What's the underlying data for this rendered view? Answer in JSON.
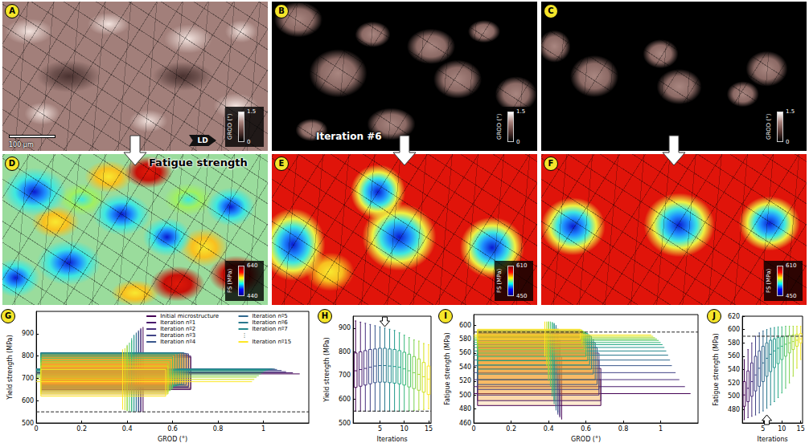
{
  "image_panels": [
    {
      "panel": "A",
      "colorbar": {
        "label": "GROD (°)",
        "range": [
          0,
          1.5
        ],
        "ticks": [
          0,
          1.5
        ],
        "colors": [
          "#000000",
          "#5a3a36",
          "#a8827c",
          "#ffffff"
        ]
      },
      "scale_bar": "100 µm",
      "direction": "LD"
    },
    {
      "panel": "B",
      "colorbar": {
        "label": "GROD (°)",
        "range": [
          0,
          1.5
        ],
        "ticks": [
          0,
          1.5
        ],
        "colors": [
          "#000000",
          "#5a3a36",
          "#a8827c",
          "#ffffff"
        ]
      },
      "caption": "Iteration #6"
    },
    {
      "panel": "C",
      "colorbar": {
        "label": "GROD (°)",
        "range": [
          0,
          1.5
        ],
        "ticks": [
          0,
          1.5
        ],
        "colors": [
          "#000000",
          "#5a3a36",
          "#a8827c",
          "#ffffff"
        ]
      }
    },
    {
      "panel": "D",
      "title": "Fatigue strength",
      "colorbar": {
        "label": "FS (MPa)",
        "range": [
          440,
          640
        ],
        "ticks": [
          440,
          640
        ],
        "colors": [
          "#00008f",
          "#0000ff",
          "#00ffff",
          "#ffff00",
          "#ff0000",
          "#800000"
        ]
      }
    },
    {
      "panel": "E",
      "colorbar": {
        "label": "FS (MPa)",
        "range": [
          450,
          610
        ],
        "ticks": [
          450,
          610
        ],
        "colors": [
          "#00008f",
          "#0000ff",
          "#00ffff",
          "#ffff00",
          "#ff0000",
          "#800000"
        ]
      }
    },
    {
      "panel": "F",
      "colorbar": {
        "label": "FS (MPa)",
        "range": [
          450,
          610
        ],
        "ticks": [
          450,
          610
        ],
        "colors": [
          "#00008f",
          "#0000ff",
          "#00ffff",
          "#ffff00",
          "#ff0000",
          "#800000"
        ]
      }
    }
  ],
  "chart_data": [
    {
      "panel": "G",
      "type": "boxplot2d",
      "x_label": "GROD (°)",
      "y_label": "Yield strength (MPa)",
      "xlim": [
        0,
        1.2
      ],
      "xticks": [
        0,
        0.2,
        0.4,
        0.6,
        0.8,
        1
      ],
      "ylim": [
        500,
        1000
      ],
      "yticks": [
        500,
        600,
        700,
        800,
        900
      ],
      "grid": false,
      "legend": "upper right",
      "reference_line": {
        "y": 550,
        "line_style": "dashed"
      },
      "annotations": [
        "⋮"
      ],
      "series": [
        {
          "name": "Initial microstructure",
          "color": "#440154",
          "grod": [
            0,
            0.02,
            0.47,
            0.68,
            1.16
          ],
          "strength": [
            550,
            650,
            720,
            795,
            930
          ]
        },
        {
          "name": "Iteration nº1",
          "color": "#481a6c",
          "grod": [
            0,
            0.02,
            0.46,
            0.68,
            1.13
          ],
          "strength": [
            550,
            655,
            725,
            800,
            925
          ]
        },
        {
          "name": "Iteration nº2",
          "color": "#472f7d",
          "grod": [
            0,
            0.02,
            0.46,
            0.67,
            1.1
          ],
          "strength": [
            550,
            660,
            730,
            805,
            920
          ]
        },
        {
          "name": "Iteration nº3",
          "color": "#414487",
          "grod": [
            0,
            0.02,
            0.45,
            0.67,
            1.08
          ],
          "strength": [
            550,
            665,
            735,
            810,
            915
          ]
        },
        {
          "name": "Iteration nº4",
          "color": "#39568c",
          "grod": [
            0,
            0.02,
            0.45,
            0.66,
            1.06
          ],
          "strength": [
            550,
            670,
            740,
            812,
            910
          ]
        },
        {
          "name": "Iteration nº5",
          "color": "#31688e",
          "grod": [
            0,
            0.02,
            0.44,
            0.65,
            1.05
          ],
          "strength": [
            550,
            672,
            742,
            815,
            905
          ]
        },
        {
          "name": "Iteration nº6",
          "color": "#2a788e",
          "grod": [
            0,
            0.02,
            0.44,
            0.64,
            1.04
          ],
          "strength": [
            550,
            672,
            742,
            815,
            900
          ]
        },
        {
          "name": "Iteration nº7",
          "color": "#23888e",
          "grod": [
            0,
            0.02,
            0.43,
            0.63,
            1.03
          ],
          "strength": [
            550,
            670,
            740,
            812,
            895
          ]
        },
        {
          "color": "#1f988b",
          "grod": [
            0,
            0.02,
            0.43,
            0.62,
            1.02
          ],
          "strength": [
            550,
            668,
            738,
            810,
            890
          ]
        },
        {
          "color": "#22a884",
          "grod": [
            0,
            0.02,
            0.42,
            0.61,
            1.01
          ],
          "strength": [
            550,
            665,
            735,
            805,
            880
          ]
        },
        {
          "color": "#35b779",
          "grod": [
            0,
            0.02,
            0.42,
            0.6,
            1.0
          ],
          "strength": [
            550,
            660,
            728,
            798,
            870
          ]
        },
        {
          "color": "#54c568",
          "grod": [
            0,
            0.02,
            0.41,
            0.6,
            0.99
          ],
          "strength": [
            552,
            652,
            720,
            790,
            860
          ]
        },
        {
          "color": "#7ad151",
          "grod": [
            0,
            0.02,
            0.4,
            0.59,
            0.98
          ],
          "strength": [
            553,
            645,
            712,
            780,
            850
          ]
        },
        {
          "color": "#a5db36",
          "grod": [
            0,
            0.02,
            0.4,
            0.58,
            0.97
          ],
          "strength": [
            555,
            638,
            705,
            770,
            845
          ]
        },
        {
          "color": "#d2e21b",
          "grod": [
            0,
            0.02,
            0.39,
            0.58,
            0.96
          ],
          "strength": [
            557,
            630,
            695,
            755,
            835
          ]
        },
        {
          "name": "Iteration nº15",
          "color": "#fde725",
          "grod": [
            0,
            0.02,
            0.38,
            0.57,
            0.95
          ],
          "strength": [
            560,
            620,
            685,
            740,
            830
          ]
        }
      ]
    },
    {
      "panel": "H",
      "type": "boxplot",
      "x_label": "Iterations",
      "y_label": "Yield strength (MPa)",
      "xlim": [
        -0.5,
        15.5
      ],
      "xticks": [
        5,
        10,
        15
      ],
      "ylim": [
        500,
        950
      ],
      "yticks": [
        500,
        600,
        700,
        800,
        900
      ],
      "grid": false,
      "reference_line": {
        "y": 550,
        "line_style": "dashed"
      },
      "arrow": {
        "x": 6,
        "direction": "down"
      },
      "x": [
        0,
        1,
        2,
        3,
        4,
        5,
        6,
        7,
        8,
        9,
        10,
        11,
        12,
        13,
        14,
        15
      ],
      "values": [
        [
          550,
          650,
          720,
          795,
          930
        ],
        [
          550,
          655,
          725,
          800,
          925
        ],
        [
          550,
          660,
          730,
          805,
          920
        ],
        [
          550,
          665,
          735,
          810,
          915
        ],
        [
          550,
          670,
          740,
          812,
          910
        ],
        [
          550,
          672,
          742,
          815,
          905
        ],
        [
          550,
          672,
          742,
          815,
          900
        ],
        [
          550,
          670,
          740,
          812,
          895
        ],
        [
          550,
          668,
          738,
          810,
          890
        ],
        [
          550,
          665,
          735,
          805,
          880
        ],
        [
          550,
          660,
          728,
          798,
          870
        ],
        [
          552,
          652,
          720,
          790,
          860
        ],
        [
          553,
          645,
          712,
          780,
          850
        ],
        [
          555,
          638,
          705,
          770,
          845
        ],
        [
          557,
          630,
          695,
          755,
          835
        ],
        [
          560,
          620,
          685,
          740,
          830
        ]
      ],
      "colors": [
        "#440154",
        "#481a6c",
        "#472f7d",
        "#414487",
        "#39568c",
        "#31688e",
        "#2a788e",
        "#23888e",
        "#1f988b",
        "#22a884",
        "#35b779",
        "#54c568",
        "#7ad151",
        "#a5db36",
        "#d2e21b",
        "#fde725"
      ]
    },
    {
      "panel": "I",
      "type": "boxplot2d",
      "x_label": "GROD (°)",
      "y_label": "Fatigue strength (MPa)",
      "xlim": [
        0,
        1.2
      ],
      "xticks": [
        0,
        0.2,
        0.4,
        0.6,
        0.8,
        1
      ],
      "ylim": [
        460,
        615
      ],
      "yticks": [
        460,
        480,
        500,
        520,
        540,
        560,
        580,
        600
      ],
      "grid": false,
      "reference_line": {
        "y": 590,
        "line_style": "dashed"
      },
      "series": [
        {
          "color": "#440154",
          "grod": [
            0,
            0.02,
            0.47,
            0.68,
            1.16
          ],
          "strength": [
            465,
            485,
            502,
            522,
            555
          ]
        },
        {
          "color": "#481a6c",
          "grod": [
            0,
            0.02,
            0.46,
            0.68,
            1.13
          ],
          "strength": [
            468,
            492,
            512,
            538,
            570
          ]
        },
        {
          "color": "#472f7d",
          "grod": [
            0,
            0.02,
            0.46,
            0.67,
            1.1
          ],
          "strength": [
            470,
            500,
            522,
            550,
            580
          ]
        },
        {
          "color": "#414487",
          "grod": [
            0,
            0.02,
            0.45,
            0.67,
            1.08
          ],
          "strength": [
            472,
            508,
            532,
            560,
            590
          ]
        },
        {
          "color": "#39568c",
          "grod": [
            0,
            0.02,
            0.45,
            0.66,
            1.06
          ],
          "strength": [
            475,
            515,
            542,
            568,
            595
          ]
        },
        {
          "color": "#31688e",
          "grod": [
            0,
            0.02,
            0.44,
            0.65,
            1.05
          ],
          "strength": [
            478,
            522,
            550,
            575,
            598
          ]
        },
        {
          "color": "#2a788e",
          "grod": [
            0,
            0.02,
            0.44,
            0.64,
            1.04
          ],
          "strength": [
            482,
            530,
            557,
            580,
            600
          ]
        },
        {
          "color": "#23888e",
          "grod": [
            0,
            0.02,
            0.43,
            0.63,
            1.03
          ],
          "strength": [
            487,
            537,
            563,
            584,
            602
          ]
        },
        {
          "color": "#1f988b",
          "grod": [
            0,
            0.02,
            0.43,
            0.62,
            1.02
          ],
          "strength": [
            492,
            543,
            568,
            586,
            603
          ]
        },
        {
          "color": "#22a884",
          "grod": [
            0,
            0.02,
            0.42,
            0.61,
            1.01
          ],
          "strength": [
            498,
            549,
            572,
            588,
            604
          ]
        },
        {
          "color": "#35b779",
          "grod": [
            0,
            0.02,
            0.42,
            0.6,
            1.0
          ],
          "strength": [
            505,
            555,
            575,
            589,
            604
          ]
        },
        {
          "color": "#54c568",
          "grod": [
            0,
            0.02,
            0.41,
            0.6,
            0.99
          ],
          "strength": [
            512,
            560,
            578,
            590,
            605
          ]
        },
        {
          "color": "#7ad151",
          "grod": [
            0,
            0.02,
            0.4,
            0.59,
            0.98
          ],
          "strength": [
            520,
            565,
            580,
            591,
            605
          ]
        },
        {
          "color": "#a5db36",
          "grod": [
            0,
            0.02,
            0.4,
            0.58,
            0.97
          ],
          "strength": [
            530,
            570,
            582,
            592,
            605
          ]
        },
        {
          "color": "#d2e21b",
          "grod": [
            0,
            0.02,
            0.39,
            0.58,
            0.96
          ],
          "strength": [
            542,
            575,
            584,
            593,
            605
          ]
        },
        {
          "color": "#fde725",
          "grod": [
            0,
            0.02,
            0.38,
            0.57,
            0.95
          ],
          "strength": [
            555,
            580,
            586,
            594,
            605
          ]
        }
      ]
    },
    {
      "panel": "J",
      "type": "boxplot",
      "x_label": "Iterations",
      "y_label": "Fatigue strength (MPa)",
      "xlim": [
        -0.5,
        15.5
      ],
      "xticks": [
        5,
        10,
        15
      ],
      "ylim": [
        460,
        620
      ],
      "yticks": [
        480,
        500,
        520,
        540,
        560,
        580,
        600,
        620
      ],
      "grid": false,
      "reference_line": {
        "y": 590,
        "line_style": "dashed"
      },
      "arrow": {
        "x": 6,
        "direction": "up"
      },
      "x": [
        0,
        1,
        2,
        3,
        4,
        5,
        6,
        7,
        8,
        9,
        10,
        11,
        12,
        13,
        14,
        15
      ],
      "values": [
        [
          465,
          485,
          502,
          522,
          555
        ],
        [
          468,
          492,
          512,
          538,
          570
        ],
        [
          470,
          500,
          522,
          550,
          580
        ],
        [
          472,
          508,
          532,
          560,
          590
        ],
        [
          475,
          515,
          542,
          568,
          595
        ],
        [
          478,
          522,
          550,
          575,
          598
        ],
        [
          482,
          530,
          557,
          580,
          600
        ],
        [
          487,
          537,
          563,
          584,
          602
        ],
        [
          492,
          543,
          568,
          586,
          603
        ],
        [
          498,
          549,
          572,
          588,
          604
        ],
        [
          505,
          555,
          575,
          589,
          604
        ],
        [
          512,
          560,
          578,
          590,
          605
        ],
        [
          520,
          565,
          580,
          591,
          605
        ],
        [
          530,
          570,
          582,
          592,
          605
        ],
        [
          542,
          575,
          584,
          593,
          605
        ],
        [
          555,
          580,
          586,
          594,
          605
        ]
      ],
      "colors": [
        "#440154",
        "#481a6c",
        "#472f7d",
        "#414487",
        "#39568c",
        "#31688e",
        "#2a788e",
        "#23888e",
        "#1f988b",
        "#22a884",
        "#35b779",
        "#54c568",
        "#7ad151",
        "#a5db36",
        "#d2e21b",
        "#fde725"
      ]
    }
  ]
}
